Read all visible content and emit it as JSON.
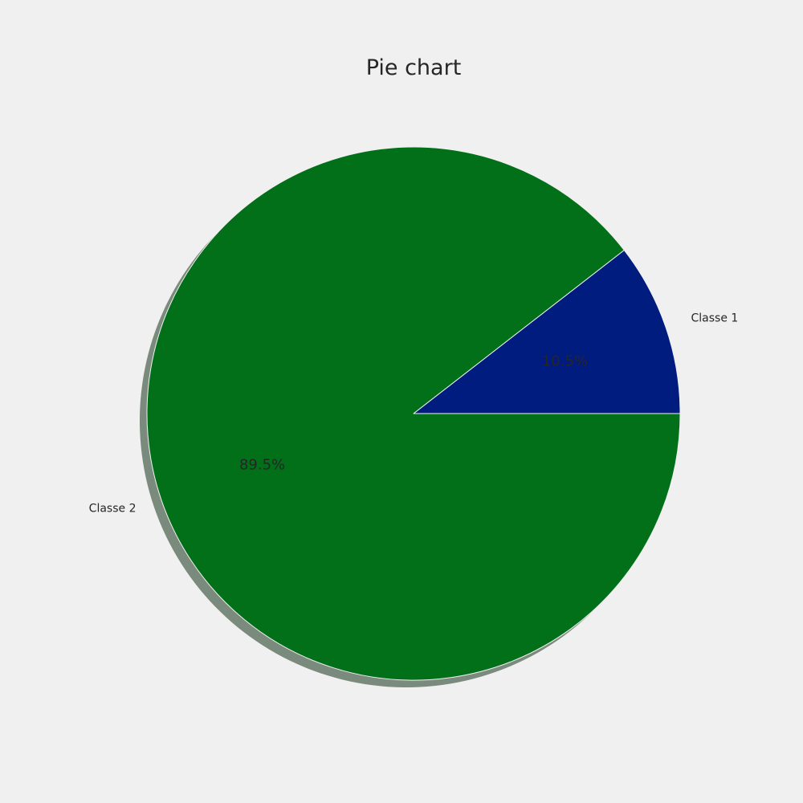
{
  "chart_data": {
    "type": "pie",
    "title": "Pie chart",
    "categories": [
      "Classe 1",
      "Classe 2"
    ],
    "values": [
      10.5,
      89.5
    ],
    "percent_labels": [
      "10.5%",
      "89.5%"
    ],
    "colors": [
      "#001c7f",
      "#027018"
    ],
    "shadow": true,
    "shadow_color": "#7a8a7c",
    "wedge_edge_color": "#f0f0f0",
    "start_angle_deg": 0,
    "direction": "counterclockwise"
  }
}
